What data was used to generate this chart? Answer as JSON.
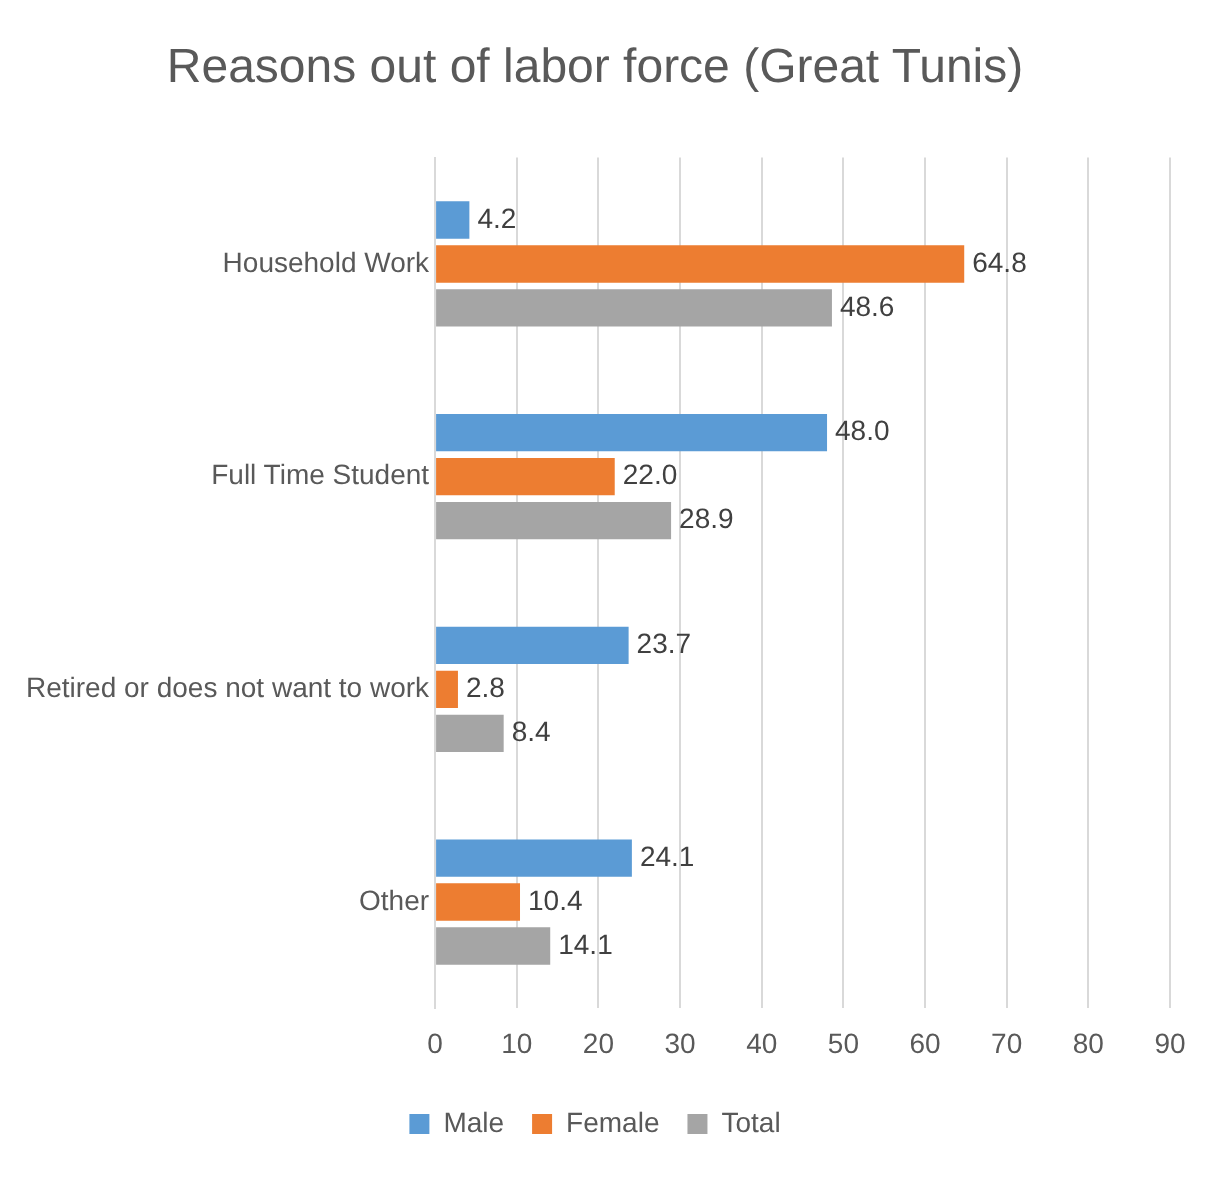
{
  "chart_data": {
    "type": "bar",
    "title": "Reasons out of labor force (Great Tunis)",
    "orientation": "horizontal",
    "categories": [
      "Household Work",
      "Full Time Student",
      "Retired or does not want to work",
      "Other"
    ],
    "series": [
      {
        "name": "Male",
        "color": "#5b9bd5",
        "values": [
          4.2,
          48.0,
          23.7,
          24.1
        ],
        "value_labels": [
          "4.2",
          "48.0",
          "23.7",
          "24.1"
        ]
      },
      {
        "name": "Female",
        "color": "#ed7d31",
        "values": [
          64.8,
          22.0,
          2.8,
          10.4
        ],
        "value_labels": [
          "64.8",
          "22.0",
          "2.8",
          "10.4"
        ]
      },
      {
        "name": "Total",
        "color": "#a5a5a5",
        "values": [
          48.6,
          28.9,
          8.4,
          14.1
        ],
        "value_labels": [
          "48.6",
          "28.9",
          "8.4",
          "14.1"
        ]
      }
    ],
    "xlim": [
      0,
      90
    ],
    "xticks": [
      0,
      10,
      20,
      30,
      40,
      50,
      60,
      70,
      80,
      90
    ],
    "grid": "x",
    "legend": "bottom"
  }
}
